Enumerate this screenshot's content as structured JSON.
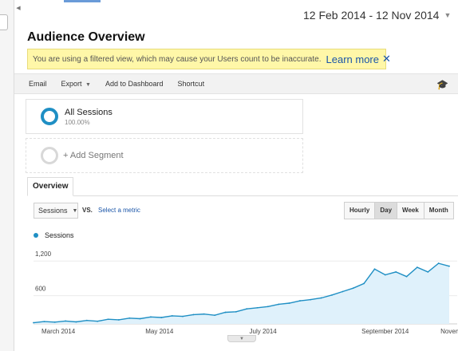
{
  "date_range": {
    "label": "12 Feb 2014 - 12 Nov 2014"
  },
  "header": {
    "title": "Audience Overview"
  },
  "notice": {
    "text": "You are using a filtered view, which may cause your Users count to be inaccurate.",
    "learn_more": "Learn more",
    "close": "✕"
  },
  "toolbar": {
    "email": "Email",
    "export": "Export",
    "add_to_dashboard": "Add to Dashboard",
    "shortcut": "Shortcut"
  },
  "segments": [
    {
      "title": "All Sessions",
      "percent": "100.00%"
    },
    {
      "title": "+ Add Segment"
    }
  ],
  "tabs": [
    {
      "label": "Overview"
    }
  ],
  "metric": {
    "selected": "Sessions",
    "vs": "VS.",
    "select_metric": "Select a metric"
  },
  "granularity": {
    "options": [
      "Hourly",
      "Day",
      "Week",
      "Month"
    ],
    "active": "Day"
  },
  "colors": {
    "accent": "#1f8fc4",
    "area_fill": "#dff1fb",
    "notice_bg": "#fff7a8",
    "link": "#1a55a8"
  },
  "icons": {
    "export_caret": "chevron-down-icon",
    "toolbar_right": "graduation-cap-icon",
    "legend": "legend-dot-icon"
  },
  "chart_data": {
    "type": "area",
    "series": [
      {
        "name": "Sessions",
        "color": "#1f8fc4"
      }
    ],
    "y_ticks": [
      "1,200",
      "600"
    ],
    "ylim": [
      0,
      1300
    ],
    "x_tick_labels": [
      "March 2014",
      "May 2014",
      "July 2014",
      "September 2014",
      "November"
    ],
    "x": [
      "2014-02-12",
      "2014-02-19",
      "2014-02-26",
      "2014-03-05",
      "2014-03-12",
      "2014-03-19",
      "2014-03-26",
      "2014-04-02",
      "2014-04-09",
      "2014-04-16",
      "2014-04-23",
      "2014-04-30",
      "2014-05-07",
      "2014-05-14",
      "2014-05-21",
      "2014-05-28",
      "2014-06-04",
      "2014-06-11",
      "2014-06-18",
      "2014-06-25",
      "2014-07-02",
      "2014-07-09",
      "2014-07-16",
      "2014-07-23",
      "2014-07-30",
      "2014-08-06",
      "2014-08-13",
      "2014-08-20",
      "2014-08-27",
      "2014-09-03",
      "2014-09-10",
      "2014-09-17",
      "2014-09-24",
      "2014-10-01",
      "2014-10-08",
      "2014-10-15",
      "2014-10-22",
      "2014-10-29",
      "2014-11-05",
      "2014-11-12"
    ],
    "values": [
      20,
      40,
      30,
      50,
      35,
      60,
      45,
      80,
      70,
      100,
      90,
      120,
      110,
      140,
      130,
      160,
      170,
      150,
      200,
      210,
      260,
      280,
      300,
      340,
      360,
      400,
      420,
      450,
      500,
      560,
      620,
      700,
      950,
      850,
      900,
      820,
      980,
      900,
      1050,
      1000
    ]
  }
}
